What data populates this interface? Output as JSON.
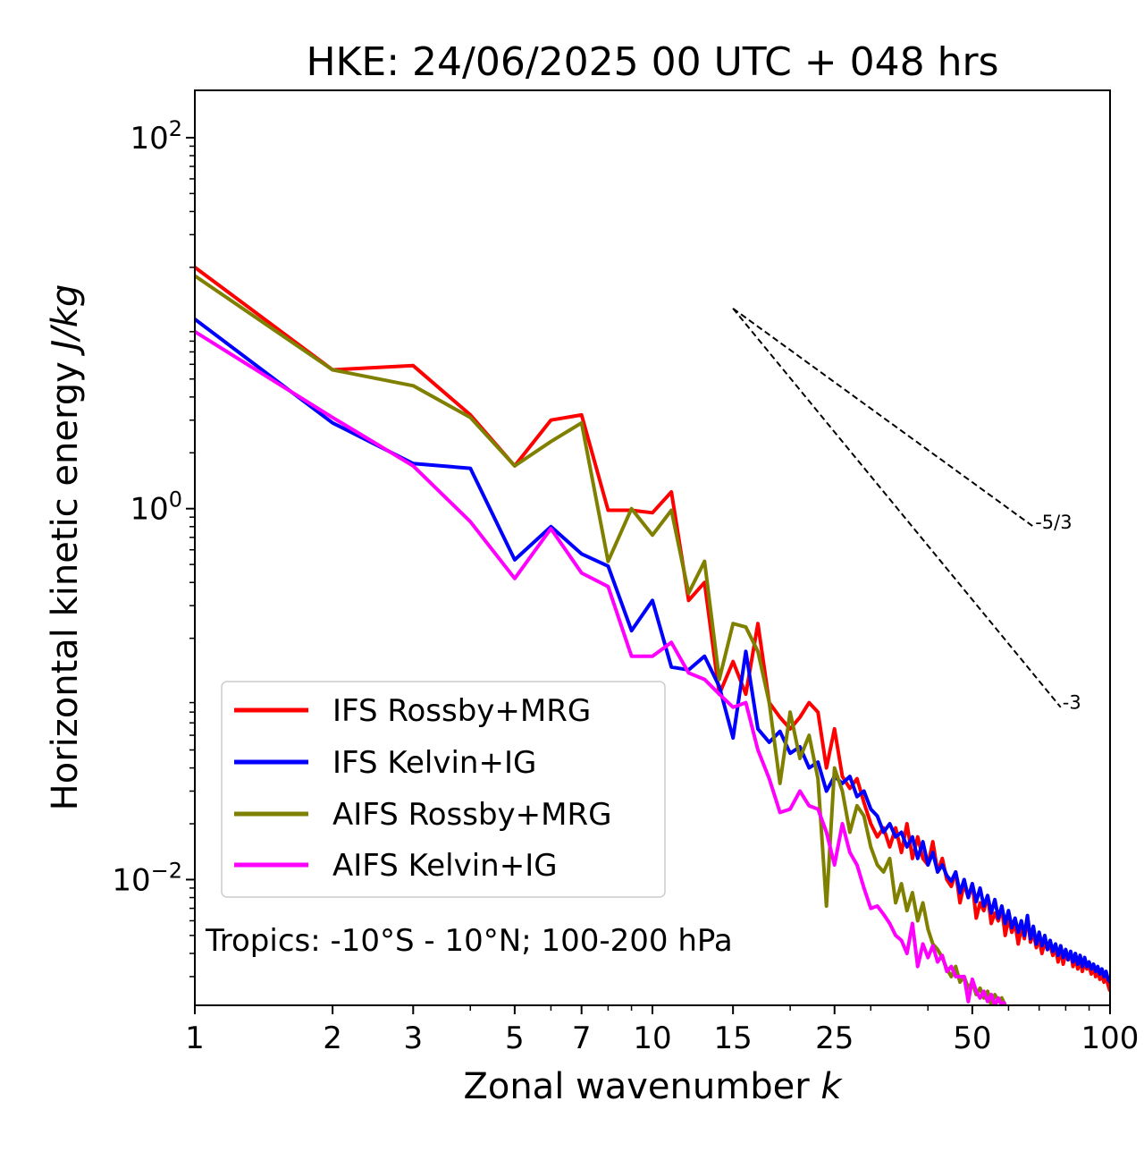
{
  "chart_data": {
    "type": "line",
    "title": "HKE: 24/06/2025 00 UTC + 048 hrs",
    "xlabel": {
      "text": "Zonal wavenumber ",
      "italic": "k"
    },
    "ylabel": {
      "text": "Horizontal kinetic energy ",
      "italic": "J/kg"
    },
    "xscale": "log",
    "yscale": "log",
    "xlim": [
      1,
      100
    ],
    "ylim": [
      0.0021,
      180
    ],
    "xticks": [
      1,
      2,
      3,
      5,
      7,
      10,
      15,
      25,
      50,
      100
    ],
    "xtick_labels": [
      "1",
      "2",
      "3",
      "5",
      "7",
      "10",
      "15",
      "25",
      "50",
      "100"
    ],
    "yticks": [
      {
        "value": 100,
        "base": "10",
        "exp": "2"
      },
      {
        "value": 1,
        "base": "10",
        "exp": "0"
      },
      {
        "value": 0.01,
        "base": "10",
        "exp": "−2"
      }
    ],
    "grid": false,
    "legend_position": "lower-left",
    "annotation": "Tropics: -10°S - 10°N; 100-200 hPa",
    "reference_slopes": [
      {
        "label": "-5/3",
        "x": [
          15,
          68
        ],
        "y": [
          12.0,
          0.8
        ]
      },
      {
        "label": "-3",
        "x": [
          15,
          78
        ],
        "y": [
          12.0,
          0.085
        ]
      }
    ],
    "series": [
      {
        "name": "IFS Rossby+MRG",
        "color": "#ff0000",
        "x": [
          1,
          2,
          3,
          4,
          5,
          6,
          7,
          8,
          9,
          10,
          11,
          12,
          13,
          14,
          15,
          16,
          17,
          18,
          19,
          20,
          21,
          22,
          23,
          24,
          25,
          26,
          27,
          28,
          29,
          30,
          31,
          32,
          33,
          34,
          35,
          36,
          37,
          38,
          39,
          40,
          41,
          42,
          43,
          44,
          45,
          46,
          47,
          48,
          49,
          50,
          51,
          52,
          53,
          54,
          55,
          56,
          57,
          58,
          59,
          60,
          61,
          62,
          63,
          64,
          65,
          66,
          67,
          68,
          69,
          70,
          71,
          72,
          73,
          74,
          75,
          76,
          77,
          78,
          79,
          80,
          81,
          82,
          83,
          84,
          85,
          86,
          87,
          88,
          89,
          90,
          91,
          92,
          93,
          94,
          95,
          96,
          97,
          98,
          99,
          100
        ],
        "y": [
          20,
          5.6,
          5.9,
          3.2,
          1.7,
          3.0,
          3.2,
          0.98,
          0.98,
          0.95,
          1.23,
          0.32,
          0.4,
          0.1,
          0.15,
          0.1,
          0.24,
          0.09,
          0.075,
          0.065,
          0.075,
          0.09,
          0.08,
          0.04,
          0.065,
          0.036,
          0.031,
          0.035,
          0.026,
          0.02,
          0.017,
          0.019,
          0.015,
          0.019,
          0.014,
          0.02,
          0.013,
          0.017,
          0.013,
          0.012,
          0.016,
          0.011,
          0.013,
          0.01,
          0.0092,
          0.011,
          0.0075,
          0.0095,
          0.008,
          0.0095,
          0.0062,
          0.0075,
          0.0068,
          0.0082,
          0.0058,
          0.0066,
          0.006,
          0.007,
          0.005,
          0.0062,
          0.0052,
          0.0058,
          0.0045,
          0.0055,
          0.0048,
          0.0062,
          0.0046,
          0.0052,
          0.0043,
          0.0048,
          0.004,
          0.0046,
          0.0042,
          0.0044,
          0.0039,
          0.0043,
          0.0036,
          0.0042,
          0.0035,
          0.004,
          0.0037,
          0.004,
          0.0034,
          0.0038,
          0.0033,
          0.0037,
          0.0032,
          0.0036,
          0.0033,
          0.0034,
          0.0031,
          0.0034,
          0.003,
          0.0033,
          0.0029,
          0.0031,
          0.0028,
          0.003,
          0.0027,
          0.0025
        ]
      },
      {
        "name": "IFS Kelvin+IG",
        "color": "#0000ff",
        "x": [
          1,
          2,
          3,
          4,
          5,
          6,
          7,
          8,
          9,
          10,
          11,
          12,
          13,
          14,
          15,
          16,
          17,
          18,
          19,
          20,
          21,
          22,
          23,
          24,
          25,
          26,
          27,
          28,
          29,
          30,
          31,
          32,
          33,
          34,
          35,
          36,
          37,
          38,
          39,
          40,
          41,
          42,
          43,
          44,
          45,
          46,
          47,
          48,
          49,
          50,
          51,
          52,
          53,
          54,
          55,
          56,
          57,
          58,
          59,
          60,
          61,
          62,
          63,
          64,
          65,
          66,
          67,
          68,
          69,
          70,
          71,
          72,
          73,
          74,
          75,
          76,
          77,
          78,
          79,
          80,
          81,
          82,
          83,
          84,
          85,
          86,
          87,
          88,
          89,
          90,
          91,
          92,
          93,
          94,
          95,
          96,
          97,
          98,
          99,
          100
        ],
        "y": [
          10.5,
          2.9,
          1.75,
          1.65,
          0.53,
          0.8,
          0.57,
          0.49,
          0.22,
          0.32,
          0.14,
          0.135,
          0.16,
          0.11,
          0.058,
          0.17,
          0.065,
          0.055,
          0.063,
          0.048,
          0.052,
          0.04,
          0.043,
          0.03,
          0.036,
          0.033,
          0.036,
          0.028,
          0.03,
          0.024,
          0.022,
          0.018,
          0.02,
          0.017,
          0.018,
          0.015,
          0.017,
          0.013,
          0.016,
          0.012,
          0.014,
          0.011,
          0.012,
          0.0105,
          0.0098,
          0.011,
          0.0085,
          0.01,
          0.008,
          0.0095,
          0.0076,
          0.009,
          0.0072,
          0.0082,
          0.0066,
          0.0078,
          0.0062,
          0.0072,
          0.0058,
          0.0068,
          0.0055,
          0.0062,
          0.0052,
          0.006,
          0.005,
          0.0064,
          0.0048,
          0.0056,
          0.0045,
          0.0052,
          0.0044,
          0.005,
          0.0042,
          0.0047,
          0.0041,
          0.0045,
          0.0039,
          0.0044,
          0.0038,
          0.0042,
          0.0037,
          0.0041,
          0.0036,
          0.004,
          0.0035,
          0.0039,
          0.0034,
          0.0038,
          0.0034,
          0.0036,
          0.0033,
          0.0035,
          0.0032,
          0.0034,
          0.0031,
          0.0033,
          0.003,
          0.0032,
          0.0029,
          0.0028
        ]
      },
      {
        "name": "AIFS Rossby+MRG",
        "color": "#808000",
        "x": [
          1,
          2,
          3,
          4,
          5,
          6,
          7,
          8,
          9,
          10,
          11,
          12,
          13,
          14,
          15,
          16,
          17,
          18,
          19,
          20,
          21,
          22,
          23,
          24,
          25,
          26,
          27,
          28,
          29,
          30,
          31,
          32,
          33,
          34,
          35,
          36,
          37,
          38,
          39,
          40,
          41,
          42,
          43,
          44,
          45,
          46,
          47,
          48,
          49,
          50,
          51,
          52,
          53,
          54,
          55,
          56,
          57,
          58,
          59
        ],
        "y": [
          18,
          5.6,
          4.6,
          3.1,
          1.7,
          2.3,
          2.9,
          0.52,
          1.0,
          0.72,
          0.98,
          0.35,
          0.52,
          0.12,
          0.24,
          0.23,
          0.17,
          0.09,
          0.033,
          0.08,
          0.045,
          0.06,
          0.035,
          0.0072,
          0.04,
          0.03,
          0.018,
          0.025,
          0.022,
          0.015,
          0.012,
          0.011,
          0.013,
          0.0075,
          0.0095,
          0.0068,
          0.0085,
          0.006,
          0.0075,
          0.0054,
          0.0045,
          0.0042,
          0.0038,
          0.0033,
          0.003,
          0.0034,
          0.0028,
          0.003,
          0.0026,
          0.0028,
          0.0024,
          0.0026,
          0.0023,
          0.0025,
          0.0021,
          0.0024,
          0.0022,
          0.0023,
          0.0021
        ]
      },
      {
        "name": "AIFS Kelvin+IG",
        "color": "#ff00ff",
        "x": [
          1,
          2,
          3,
          4,
          5,
          6,
          7,
          8,
          9,
          10,
          11,
          12,
          13,
          14,
          15,
          16,
          17,
          18,
          19,
          20,
          21,
          22,
          23,
          24,
          25,
          26,
          27,
          28,
          29,
          30,
          31,
          32,
          33,
          34,
          35,
          36,
          37,
          38,
          39,
          40,
          41,
          42,
          43,
          44,
          45,
          46,
          47,
          48,
          49,
          50,
          51,
          52,
          53,
          54,
          55,
          56,
          57,
          58,
          59
        ],
        "y": [
          9,
          3.1,
          1.7,
          0.85,
          0.42,
          0.78,
          0.45,
          0.38,
          0.16,
          0.16,
          0.19,
          0.13,
          0.12,
          0.1,
          0.085,
          0.09,
          0.05,
          0.035,
          0.023,
          0.024,
          0.03,
          0.025,
          0.024,
          0.018,
          0.012,
          0.02,
          0.014,
          0.012,
          0.009,
          0.007,
          0.0072,
          0.0065,
          0.0058,
          0.005,
          0.0047,
          0.004,
          0.0058,
          0.0034,
          0.0045,
          0.0038,
          0.0044,
          0.0036,
          0.0039,
          0.0032,
          0.0034,
          0.003,
          0.003,
          0.003,
          0.0022,
          0.0029,
          0.0025,
          0.0023,
          0.0025,
          0.0022,
          0.0024,
          0.0021,
          0.0023,
          0.0021,
          0.0022
        ]
      }
    ]
  }
}
